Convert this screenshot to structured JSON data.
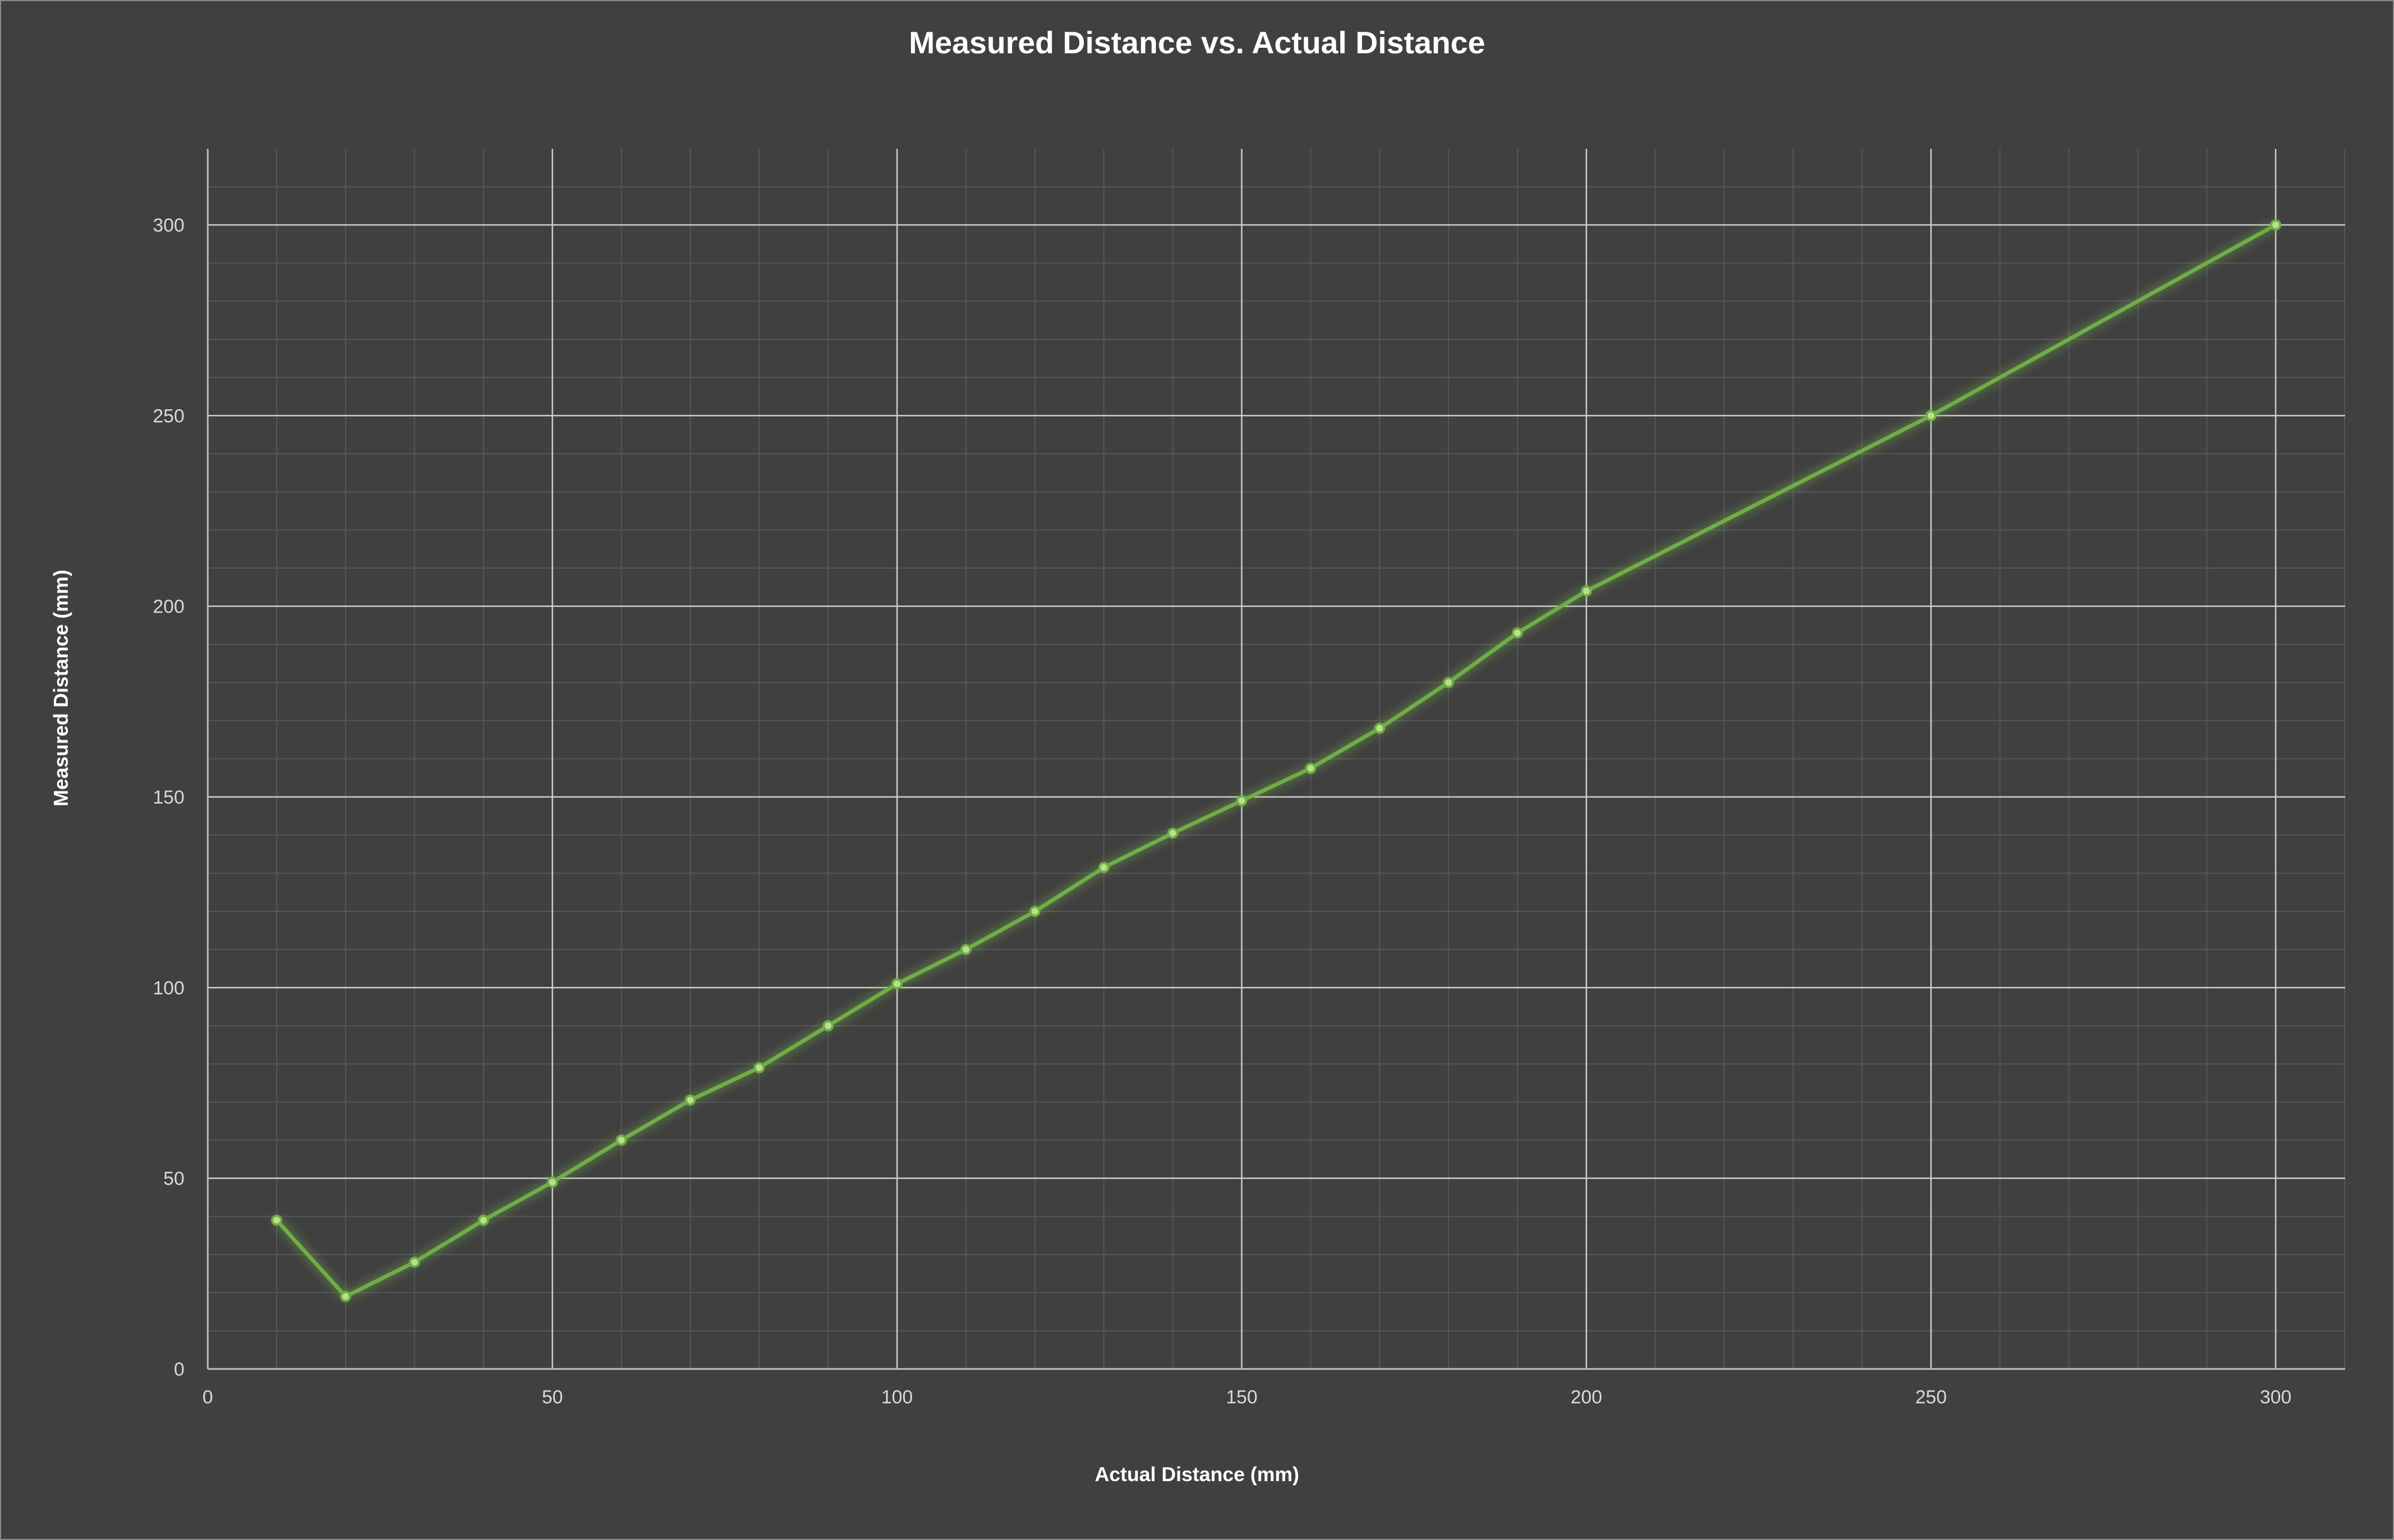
{
  "chart_data": {
    "type": "line",
    "title": "Measured Distance vs. Actual Distance",
    "xlabel": "Actual Distance (mm)",
    "ylabel": "Measured Distance (mm)",
    "xlim": [
      0,
      310
    ],
    "ylim": [
      0,
      320
    ],
    "x_ticks": [
      0,
      50,
      100,
      150,
      200,
      250,
      300
    ],
    "y_ticks": [
      0,
      50,
      100,
      150,
      200,
      250,
      300
    ],
    "grid": true,
    "legend": "none",
    "series": [
      {
        "color": "#70ad47",
        "x": [
          10,
          20,
          30,
          40,
          50,
          60,
          70,
          80,
          90,
          100,
          110,
          120,
          130,
          140,
          150,
          160,
          170,
          180,
          190,
          200,
          250,
          300
        ],
        "y": [
          39,
          19,
          28,
          39,
          49,
          60,
          70.5,
          79,
          90,
          101,
          110,
          120,
          131.5,
          140.5,
          149,
          157.5,
          168,
          180,
          193,
          204,
          250,
          300
        ]
      }
    ]
  }
}
